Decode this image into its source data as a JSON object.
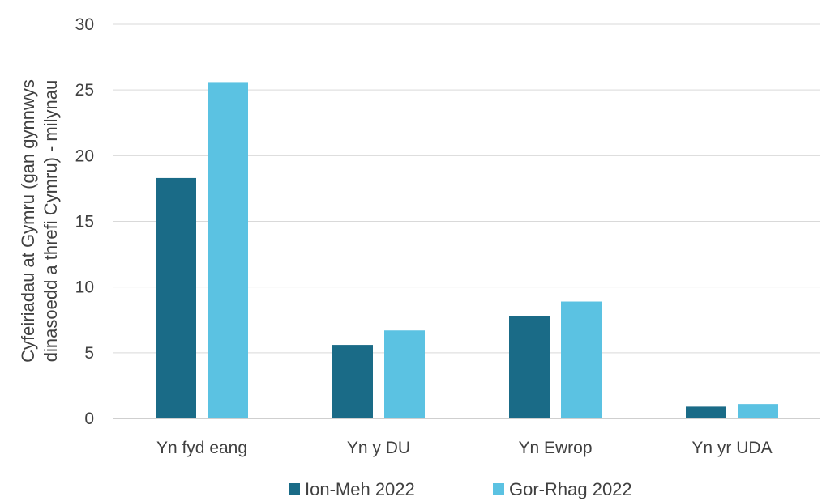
{
  "chart_data": {
    "type": "bar",
    "categories": [
      "Yn fyd eang",
      "Yn y DU",
      "Yn Ewrop",
      "Yn yr UDA"
    ],
    "series": [
      {
        "name": "Ion-Meh 2022",
        "color": "#1a6b87",
        "values": [
          18.3,
          5.6,
          7.8,
          0.9
        ]
      },
      {
        "name": "Gor-Rhag 2022",
        "color": "#5bc2e2",
        "values": [
          25.6,
          6.7,
          8.9,
          1.1
        ]
      }
    ],
    "ylabel_lines": [
      "Cyfeiriadau at Gymru (gan gynnwys",
      "dinasoedd a threfi Cymru) - milynau"
    ],
    "ylim": [
      0,
      30
    ],
    "yticks": [
      0,
      5,
      10,
      15,
      20,
      25,
      30
    ],
    "grid": true,
    "legend_position": "bottom"
  }
}
